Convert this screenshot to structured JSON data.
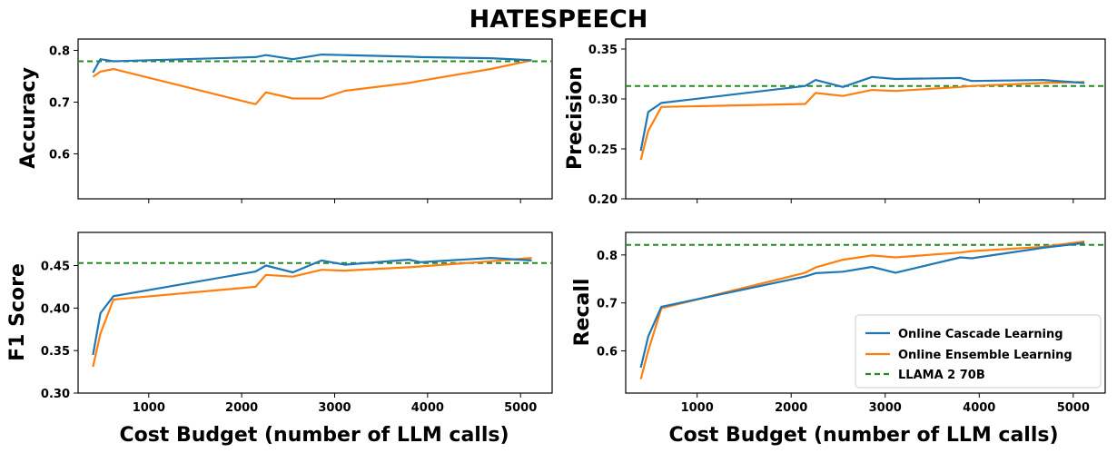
{
  "title": "HATESPEECH",
  "colors": {
    "cascade": "#1f77b4",
    "ensemble": "#ff7f0e",
    "baseline": "#228B22"
  },
  "legend": {
    "items": [
      {
        "label": "Online Cascade Learning",
        "key": "cascade",
        "style": "solid"
      },
      {
        "label": "Online Ensemble Learning",
        "key": "ensemble",
        "style": "solid"
      },
      {
        "label": "LLAMA 2 70B",
        "key": "baseline",
        "style": "dashed"
      }
    ]
  },
  "chart_data": [
    {
      "type": "line",
      "title": "",
      "ylabel": "Accuracy",
      "xlabel": "",
      "xlim": [
        240,
        5340
      ],
      "ylim": [
        0.513,
        0.822
      ],
      "xticks": [
        1000,
        2000,
        3000,
        4000,
        5000
      ],
      "xtick_labels": [],
      "yticks": [
        0.6,
        0.7,
        0.8
      ],
      "ytick_labels": [
        "0.6",
        "0.7",
        "0.8"
      ],
      "baseline": {
        "name": "LLAMA 2 70B",
        "value": 0.779
      },
      "series": [
        {
          "name": "Online Cascade Learning",
          "color_key": "cascade",
          "x": [
            400,
            480,
            620,
            2150,
            2260,
            2550,
            2860,
            3110,
            3800,
            3920,
            4680,
            5120
          ],
          "y": [
            0.757,
            0.783,
            0.779,
            0.787,
            0.791,
            0.783,
            0.792,
            0.791,
            0.788,
            0.787,
            0.785,
            0.781
          ]
        },
        {
          "name": "Online Ensemble Learning",
          "color_key": "ensemble",
          "x": [
            400,
            480,
            620,
            2150,
            2260,
            2550,
            2860,
            3110,
            3800,
            3920,
            4680,
            5120
          ],
          "y": [
            0.749,
            0.759,
            0.764,
            0.696,
            0.719,
            0.707,
            0.707,
            0.722,
            0.737,
            0.741,
            0.764,
            0.781
          ]
        }
      ]
    },
    {
      "type": "line",
      "title": "",
      "ylabel": "Precision",
      "xlabel": "",
      "xlim": [
        240,
        5340
      ],
      "ylim": [
        0.2,
        0.36
      ],
      "xticks": [
        1000,
        2000,
        3000,
        4000,
        5000
      ],
      "xtick_labels": [],
      "yticks": [
        0.2,
        0.25,
        0.3,
        0.35
      ],
      "ytick_labels": [
        "0.20",
        "0.25",
        "0.30",
        "0.35"
      ],
      "baseline": {
        "name": "LLAMA 2 70B",
        "value": 0.313
      },
      "series": [
        {
          "name": "Online Cascade Learning",
          "color_key": "cascade",
          "x": [
            400,
            480,
            620,
            2150,
            2260,
            2550,
            2860,
            3110,
            3800,
            3920,
            4680,
            5120
          ],
          "y": [
            0.248,
            0.287,
            0.296,
            0.313,
            0.319,
            0.312,
            0.322,
            0.32,
            0.321,
            0.318,
            0.319,
            0.316
          ]
        },
        {
          "name": "Online Ensemble Learning",
          "color_key": "ensemble",
          "x": [
            400,
            480,
            620,
            2150,
            2260,
            2550,
            2860,
            3110,
            3800,
            3920,
            4680,
            5120
          ],
          "y": [
            0.239,
            0.268,
            0.292,
            0.295,
            0.306,
            0.303,
            0.309,
            0.308,
            0.312,
            0.313,
            0.316,
            0.317
          ]
        }
      ]
    },
    {
      "type": "line",
      "title": "",
      "ylabel": "F1 Score",
      "xlabel": "Cost Budget (number of LLM calls)",
      "xlim": [
        240,
        5340
      ],
      "ylim": [
        0.3,
        0.489
      ],
      "xticks": [
        1000,
        2000,
        3000,
        4000,
        5000
      ],
      "xtick_labels": [
        "1000",
        "2000",
        "3000",
        "4000",
        "5000"
      ],
      "yticks": [
        0.3,
        0.35,
        0.4,
        0.45
      ],
      "ytick_labels": [
        "0.30",
        "0.35",
        "0.40",
        "0.45"
      ],
      "baseline": {
        "name": "LLAMA 2 70B",
        "value": 0.453
      },
      "series": [
        {
          "name": "Online Cascade Learning",
          "color_key": "cascade",
          "x": [
            400,
            480,
            620,
            2150,
            2260,
            2550,
            2860,
            3110,
            3800,
            3920,
            4680,
            5120
          ],
          "y": [
            0.345,
            0.394,
            0.414,
            0.443,
            0.45,
            0.442,
            0.456,
            0.451,
            0.457,
            0.454,
            0.459,
            0.456
          ]
        },
        {
          "name": "Online Ensemble Learning",
          "color_key": "ensemble",
          "x": [
            400,
            480,
            620,
            2150,
            2260,
            2550,
            2860,
            3110,
            3800,
            3920,
            4680,
            5120
          ],
          "y": [
            0.331,
            0.37,
            0.41,
            0.425,
            0.439,
            0.437,
            0.445,
            0.444,
            0.448,
            0.449,
            0.455,
            0.459
          ]
        }
      ]
    },
    {
      "type": "line",
      "title": "",
      "ylabel": "Recall",
      "xlabel": "Cost Budget (number of LLM calls)",
      "xlim": [
        240,
        5340
      ],
      "ylim": [
        0.512,
        0.847
      ],
      "xticks": [
        1000,
        2000,
        3000,
        4000,
        5000
      ],
      "xtick_labels": [
        "1000",
        "2000",
        "3000",
        "4000",
        "5000"
      ],
      "yticks": [
        0.6,
        0.7,
        0.8
      ],
      "ytick_labels": [
        "0.6",
        "0.7",
        "0.8"
      ],
      "baseline": {
        "name": "LLAMA 2 70B",
        "value": 0.821
      },
      "series": [
        {
          "name": "Online Cascade Learning",
          "color_key": "cascade",
          "x": [
            400,
            480,
            620,
            2150,
            2260,
            2550,
            2860,
            3110,
            3800,
            3920,
            4680,
            5120
          ],
          "y": [
            0.565,
            0.63,
            0.692,
            0.755,
            0.762,
            0.765,
            0.775,
            0.763,
            0.795,
            0.793,
            0.815,
            0.825
          ]
        },
        {
          "name": "Online Ensemble Learning",
          "color_key": "ensemble",
          "x": [
            400,
            480,
            620,
            2150,
            2260,
            2550,
            2860,
            3110,
            3800,
            3920,
            4680,
            5120
          ],
          "y": [
            0.541,
            0.6,
            0.689,
            0.763,
            0.774,
            0.79,
            0.799,
            0.795,
            0.805,
            0.808,
            0.817,
            0.828
          ]
        }
      ]
    }
  ]
}
